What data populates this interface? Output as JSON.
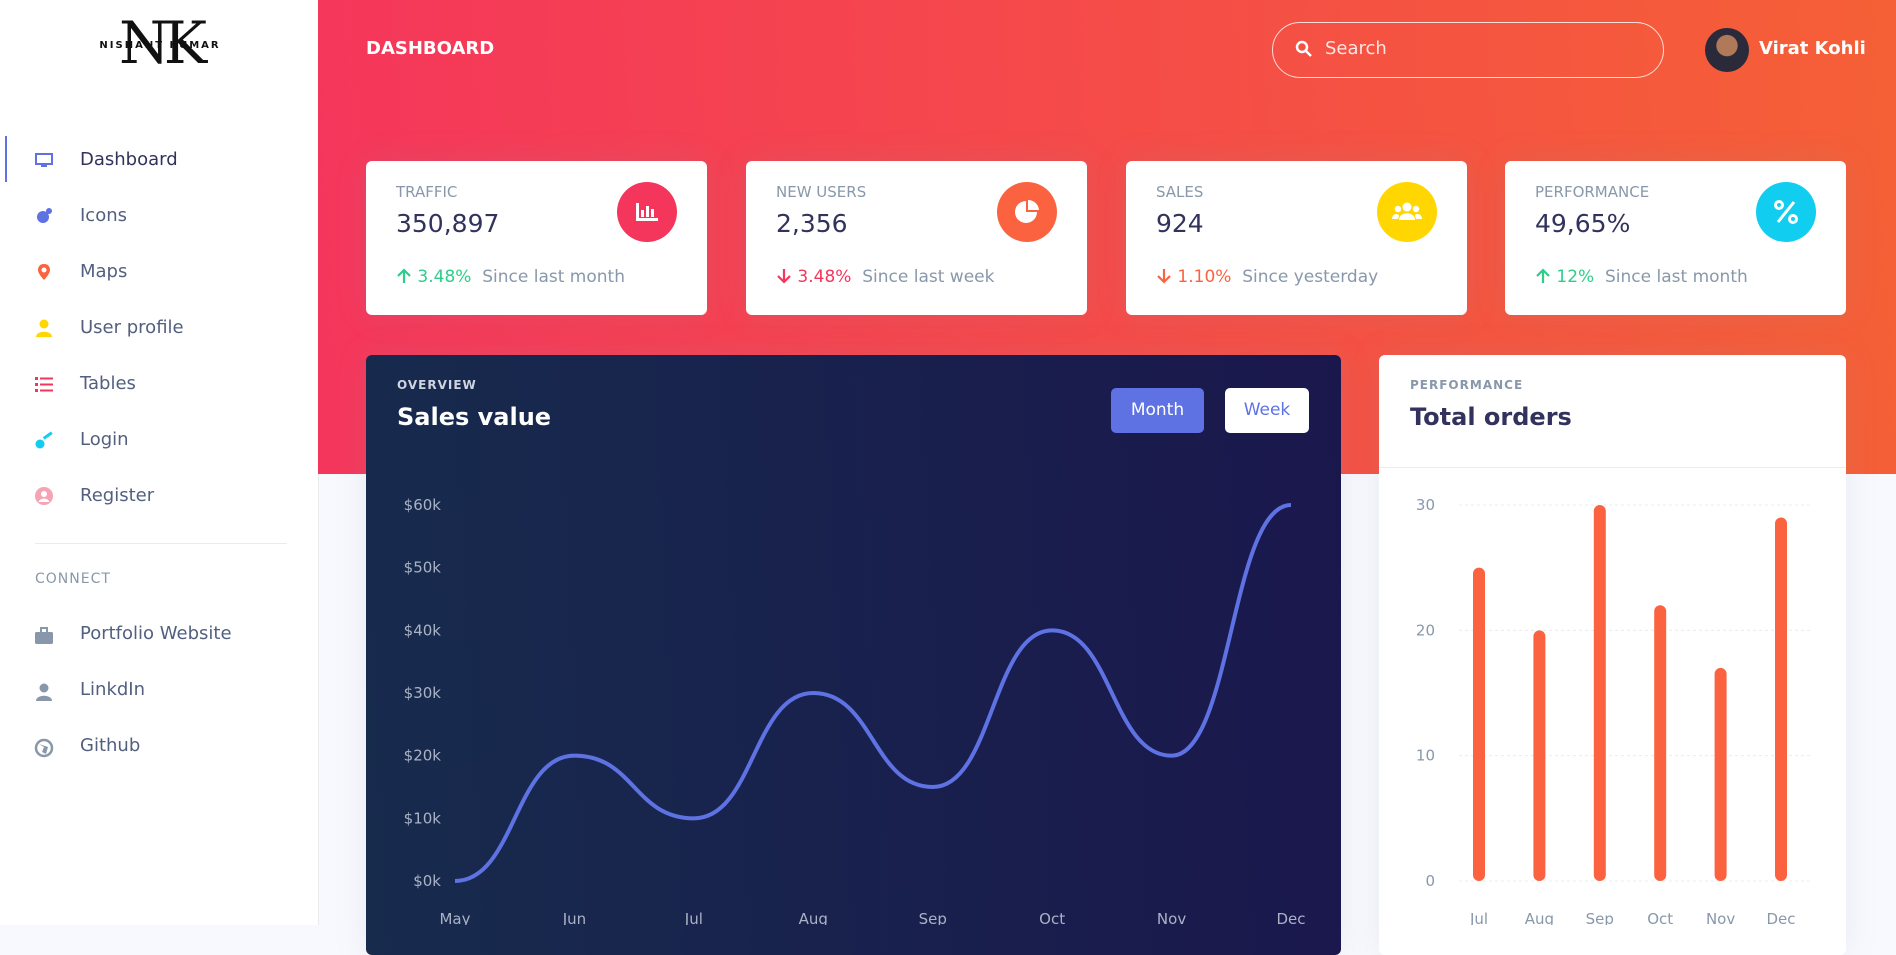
{
  "sidebar": {
    "logo": {
      "initials": "NK",
      "name": "NISHANT KUMAR"
    },
    "nav": [
      "Dashboard",
      "Icons",
      "Maps",
      "User profile",
      "Tables",
      "Login",
      "Register"
    ],
    "connect_heading": "CONNECT",
    "connect": [
      "Portfolio Website",
      "LinkdIn",
      "Github"
    ]
  },
  "header": {
    "title": "DASHBOARD",
    "search_placeholder": "Search",
    "user": "Virat Kohli"
  },
  "stats": [
    {
      "label": "TRAFFIC",
      "value": "350,897",
      "change": "3.48%",
      "note": "Since last month"
    },
    {
      "label": "NEW USERS",
      "value": "2,356",
      "change": "3.48%",
      "note": "Since last week"
    },
    {
      "label": "SALES",
      "value": "924",
      "change": "1.10%",
      "note": "Since yesterday"
    },
    {
      "label": "PERFORMANCE",
      "value": "49,65%",
      "change": "12%",
      "note": "Since last month"
    }
  ],
  "overview_buttons": [
    "Month",
    "Week"
  ],
  "chart_data": [
    {
      "type": "line",
      "overline": "OVERVIEW",
      "title": "Sales value",
      "categories": [
        "May",
        "Jun",
        "Jul",
        "Aug",
        "Sep",
        "Oct",
        "Nov",
        "Dec"
      ],
      "values": [
        0,
        20000,
        10000,
        30000,
        15000,
        40000,
        20000,
        60000
      ],
      "color": "#5e72e4",
      "grid": false,
      "ylim": [
        0,
        60000
      ],
      "yticks": [
        {
          "value": 0,
          "label": "$0k"
        },
        {
          "value": 10000,
          "label": "$10k"
        },
        {
          "value": 20000,
          "label": "$20k"
        },
        {
          "value": 30000,
          "label": "$30k"
        },
        {
          "value": 40000,
          "label": "$40k"
        },
        {
          "value": 50000,
          "label": "$50k"
        },
        {
          "value": 60000,
          "label": "$60k"
        }
      ]
    },
    {
      "type": "bar",
      "overline": "PERFORMANCE",
      "title": "Total orders",
      "categories": [
        "Jul",
        "Aug",
        "Sep",
        "Oct",
        "Nov",
        "Dec"
      ],
      "values": [
        25,
        20,
        30,
        22,
        17,
        29
      ],
      "color": "#fb6340",
      "grid": true,
      "ylim": [
        0,
        30
      ],
      "yticks": [
        0,
        10,
        20,
        30
      ]
    }
  ]
}
